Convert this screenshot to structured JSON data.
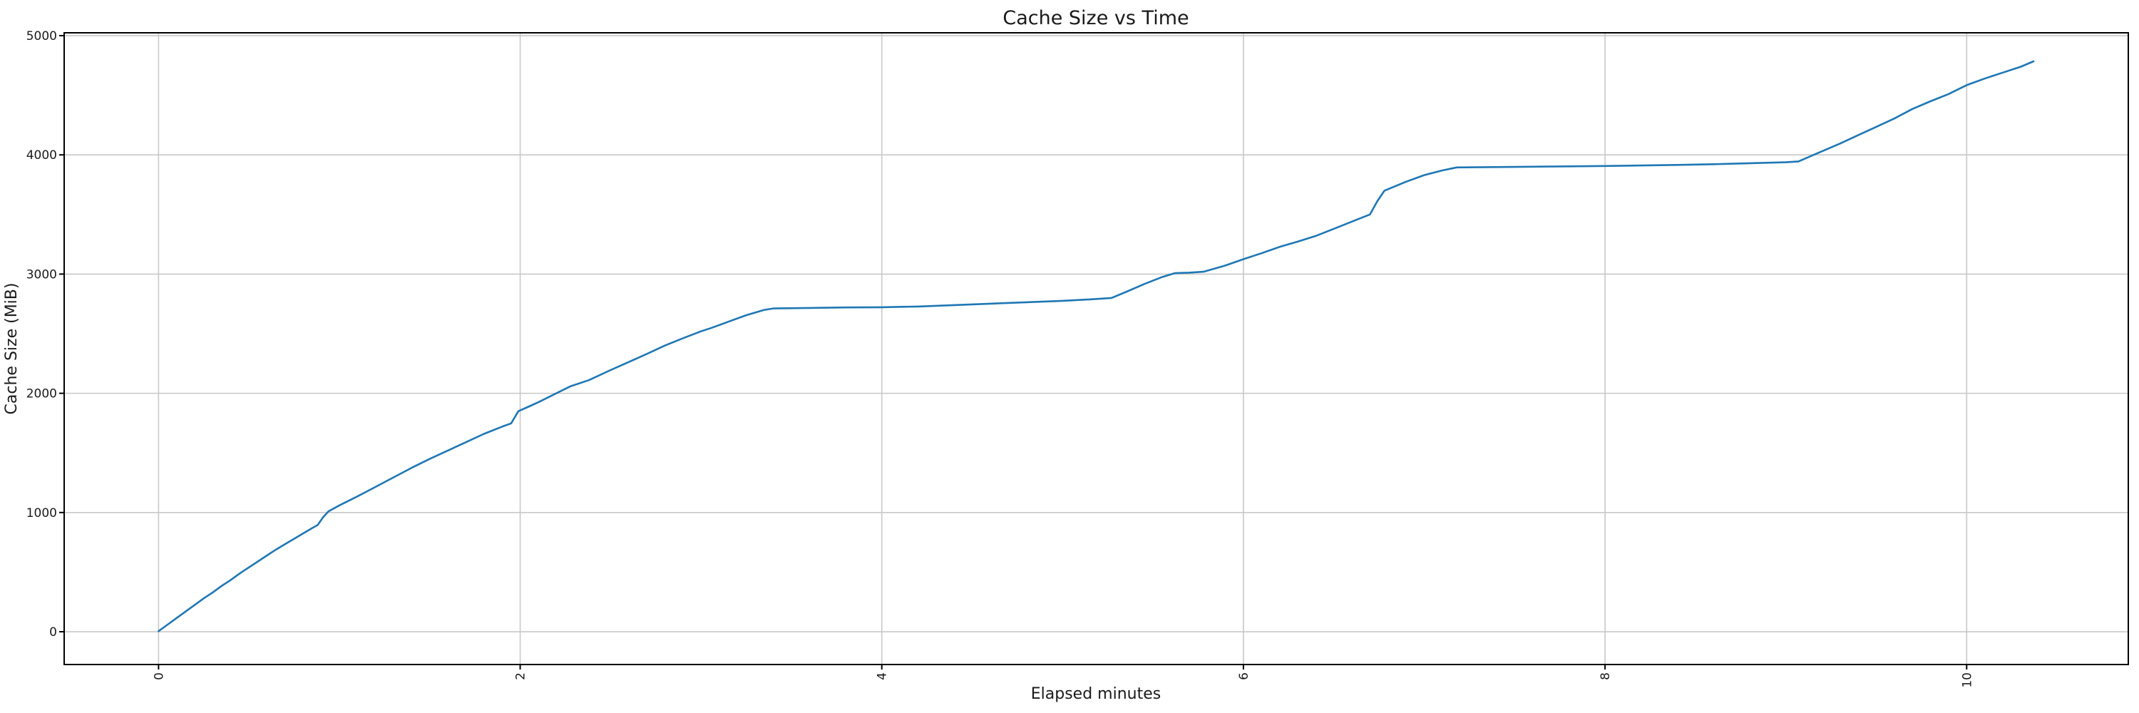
{
  "figure": {
    "title": "Cache Size vs Time",
    "xlabel": "Elapsed minutes",
    "ylabel": "Cache Size (MiB)"
  },
  "chart_data": {
    "type": "line",
    "title": "Cache Size vs Time",
    "xlabel": "Elapsed minutes",
    "ylabel": "Cache Size (MiB)",
    "xlim": [
      -0.522,
      10.894
    ],
    "ylim": [
      -275,
      5024
    ],
    "x_ticks": [
      0,
      2,
      4,
      6,
      8,
      10
    ],
    "x_tick_labels": [
      "0",
      "2",
      "4",
      "6",
      "8",
      "10"
    ],
    "x_tick_rotation_deg": 90,
    "y_ticks": [
      0,
      1000,
      2000,
      3000,
      4000,
      5000
    ],
    "y_tick_labels": [
      "0",
      "1000",
      "2000",
      "3000",
      "4000",
      "5000"
    ],
    "grid": true,
    "legend": false,
    "colors": {
      "line": "#1f77b4",
      "grid": "#c8c8c8",
      "spine": "#000000",
      "background": "#ffffff"
    },
    "series": [
      {
        "name": "Cache Size (MiB)",
        "x": [
          0,
          0.05,
          0.1,
          0.15,
          0.2,
          0.25,
          0.3,
          0.35,
          0.4,
          0.45,
          0.5,
          0.55,
          0.6,
          0.65,
          0.7,
          0.75,
          0.8,
          0.85,
          0.88,
          0.91,
          0.94,
          1.0,
          1.1,
          1.2,
          1.3,
          1.4,
          1.5,
          1.6,
          1.7,
          1.8,
          1.9,
          1.95,
          1.99,
          2.05,
          2.1,
          2.2,
          2.28,
          2.38,
          2.5,
          2.6,
          2.7,
          2.8,
          2.9,
          3.0,
          3.06,
          3.15,
          3.25,
          3.35,
          3.4,
          3.6,
          3.8,
          4.0,
          4.2,
          4.4,
          4.6,
          4.8,
          5.0,
          5.15,
          5.27,
          5.35,
          5.45,
          5.55,
          5.62,
          5.7,
          5.78,
          5.9,
          6.0,
          6.1,
          6.2,
          6.3,
          6.4,
          6.5,
          6.6,
          6.7,
          6.74,
          6.78,
          6.9,
          7.0,
          7.1,
          7.18,
          7.4,
          7.6,
          7.8,
          8.0,
          8.2,
          8.4,
          8.6,
          8.8,
          9.0,
          9.07,
          9.2,
          9.3,
          9.4,
          9.5,
          9.6,
          9.7,
          9.8,
          9.9,
          10.0,
          10.1,
          10.2,
          10.3,
          10.37
        ],
        "y": [
          5,
          60,
          115,
          170,
          225,
          280,
          330,
          385,
          435,
          490,
          540,
          590,
          640,
          690,
          735,
          780,
          825,
          870,
          895,
          960,
          1010,
          1060,
          1135,
          1215,
          1295,
          1375,
          1450,
          1520,
          1590,
          1660,
          1720,
          1748,
          1850,
          1890,
          1925,
          2000,
          2060,
          2110,
          2195,
          2262,
          2330,
          2400,
          2462,
          2520,
          2550,
          2600,
          2655,
          2700,
          2712,
          2716,
          2720,
          2722,
          2728,
          2740,
          2752,
          2764,
          2776,
          2788,
          2800,
          2850,
          2915,
          2975,
          3008,
          3012,
          3020,
          3072,
          3125,
          3175,
          3228,
          3272,
          3320,
          3380,
          3440,
          3500,
          3610,
          3700,
          3775,
          3830,
          3870,
          3895,
          3898,
          3901,
          3904,
          3907,
          3911,
          3916,
          3922,
          3930,
          3938,
          3945,
          4030,
          4095,
          4165,
          4235,
          4305,
          4385,
          4450,
          4510,
          4585,
          4640,
          4690,
          4740,
          4785
        ]
      }
    ]
  }
}
